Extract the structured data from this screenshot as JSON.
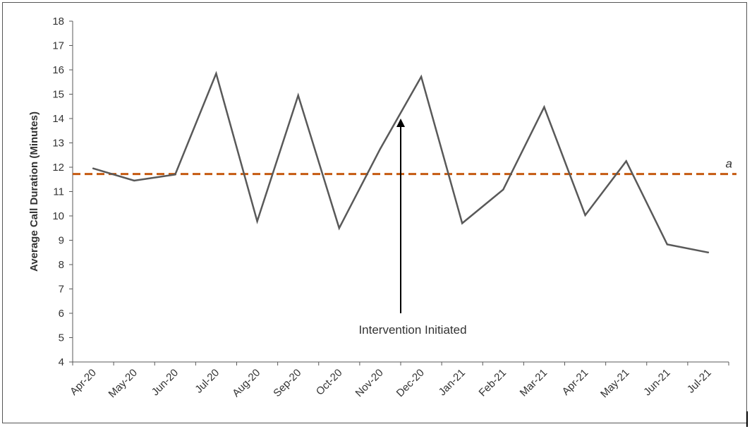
{
  "chart_data": {
    "type": "line",
    "title": "",
    "xlabel": "",
    "ylabel": "Average Call  Duration  (Minutes)",
    "ylim": [
      4,
      18
    ],
    "yticks": [
      4,
      5,
      6,
      7,
      8,
      9,
      10,
      11,
      12,
      13,
      14,
      15,
      16,
      17,
      18
    ],
    "categories": [
      "Apr-20",
      "May-20",
      "Jun-20",
      "Jul-20",
      "Aug-20",
      "Sep-20",
      "Oct-20",
      "Nov-20",
      "Dec-20",
      "Jan-21",
      "Feb-21",
      "Mar-21",
      "Apr-21",
      "May-21",
      "Jun-21",
      "Jul-21"
    ],
    "series": [
      {
        "values": [
          11.95,
          11.45,
          11.7,
          15.85,
          9.78,
          14.95,
          9.5,
          12.75,
          15.72,
          9.7,
          11.08,
          14.47,
          10.03,
          12.25,
          8.83,
          8.5
        ],
        "color": "#595959"
      }
    ],
    "reference_line": {
      "value": 11.72,
      "label": "a",
      "color": "#C55A11",
      "style": "dashed"
    },
    "annotation": {
      "text": "Intervention Initiated",
      "arrow_top_value": 14.0,
      "arrow_bottom_value": 6.0,
      "color": "#000000"
    },
    "grid": false,
    "legend": "none"
  }
}
